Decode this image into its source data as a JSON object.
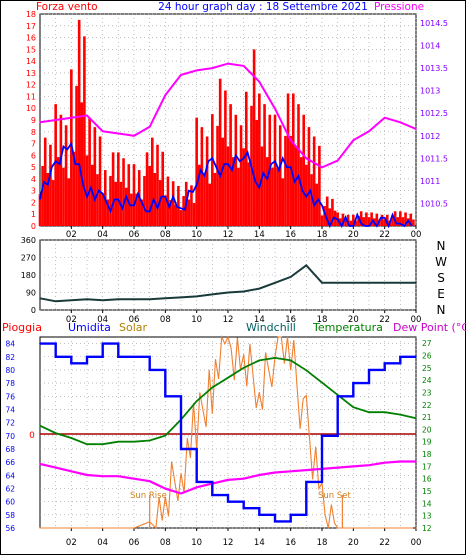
{
  "header": {
    "left_label": "Forza vento",
    "title": "24 hour graph day : 18 Settembre 2021",
    "right_label": "Pressione"
  },
  "panel2": {
    "direction_labels": [
      "N",
      "W",
      "S",
      "E",
      "N"
    ]
  },
  "panel3": {
    "legend": [
      "Pioggia",
      "Umidita",
      "Solar",
      "Windchill",
      "Temperatura",
      "Dew Point (°C)"
    ],
    "zero_label": "0",
    "sun_rise_label": "Sun Rise",
    "sun_set_label": "Sun Set"
  },
  "colors": {
    "wind": "#ff0000",
    "gust": "#ff0000",
    "speed": "#0000ff",
    "pressure": "#ff00ff",
    "direction": "#1a3a3a",
    "humidity": "#0000ff",
    "temperature": "#008000",
    "dewpoint": "#ff00ff",
    "solar": "#f08030",
    "rain": "#aa0000",
    "label_red": "#ff0000",
    "label_blue": "#0000ff",
    "label_magenta": "#cc00cc",
    "label_gold": "#b08000",
    "label_teal": "#006060",
    "label_green": "#008000"
  },
  "chart_data": [
    {
      "type": "line",
      "title": "24 hour graph day : 18 Settembre 2021",
      "x_ticks": [
        "02",
        "04",
        "06",
        "08",
        "10",
        "12",
        "14",
        "16",
        "18",
        "20",
        "22",
        "00"
      ],
      "x": [
        0,
        1,
        2,
        3,
        4,
        5,
        6,
        7,
        8,
        9,
        10,
        11,
        12,
        13,
        14,
        15,
        16,
        17,
        18,
        19,
        20,
        21,
        22,
        23,
        24
      ],
      "ylim_left": [
        0,
        18
      ],
      "ylim_right": [
        1010,
        1014.7
      ],
      "left_ticks": [
        "0",
        "1",
        "2",
        "3",
        "4",
        "5",
        "6",
        "7",
        "8",
        "9",
        "10",
        "11",
        "12",
        "13",
        "14",
        "15",
        "16",
        "17",
        "18"
      ],
      "right_ticks": [
        "1010.5",
        "1011",
        "1011.5",
        "1012",
        "1012.5",
        "1013",
        "1013.5",
        "1014",
        "1014.5"
      ],
      "series": [
        {
          "name": "Forza vento",
          "axis": "left",
          "values": [
            6,
            9,
            14,
            8,
            5,
            5,
            5,
            6,
            4,
            3,
            8,
            10,
            9,
            12,
            9,
            9,
            9,
            8,
            2,
            1,
            1,
            1,
            1,
            1,
            1
          ]
        },
        {
          "name": "Pressione",
          "axis": "right",
          "values": [
            1012.3,
            1012.35,
            1012.4,
            1012.45,
            1012.1,
            1012.05,
            1012.0,
            1012.2,
            1012.9,
            1013.35,
            1013.45,
            1013.5,
            1013.6,
            1013.55,
            1013.2,
            1012.6,
            1011.9,
            1011.5,
            1011.3,
            1011.45,
            1011.9,
            1012.1,
            1012.4,
            1012.3,
            1012.15
          ]
        },
        {
          "values": [
            3,
            5,
            7,
            3,
            2,
            2,
            2,
            2,
            2,
            1.5,
            4,
            5,
            5,
            6,
            4,
            5,
            5,
            3,
            1,
            0.3,
            0.2,
            0.2,
            0.2,
            0.2,
            0.2
          ]
        }
      ]
    },
    {
      "type": "line",
      "x_ticks": [
        "02",
        "04",
        "06",
        "08",
        "10",
        "12",
        "14",
        "16",
        "18",
        "20",
        "22",
        "00"
      ],
      "y_ticks": [
        "0",
        "90",
        "180",
        "270",
        "360"
      ],
      "ylim": [
        0,
        360
      ],
      "x": [
        0,
        1,
        2,
        3,
        4,
        5,
        6,
        7,
        8,
        9,
        10,
        11,
        12,
        13,
        14,
        15,
        16,
        17,
        18,
        19,
        20,
        21,
        22,
        23,
        24
      ],
      "series": [
        {
          "values": [
            60,
            45,
            50,
            55,
            50,
            55,
            55,
            55,
            60,
            65,
            70,
            80,
            90,
            95,
            110,
            140,
            170,
            230,
            140,
            140,
            140,
            140,
            140,
            140,
            140
          ]
        }
      ]
    },
    {
      "type": "line",
      "x_ticks": [
        "02",
        "04",
        "06",
        "08",
        "10",
        "12",
        "14",
        "16",
        "18",
        "20",
        "22",
        "00"
      ],
      "x": [
        0,
        1,
        2,
        3,
        4,
        5,
        6,
        7,
        8,
        9,
        10,
        11,
        12,
        13,
        14,
        15,
        16,
        17,
        18,
        19,
        20,
        21,
        22,
        23,
        24
      ],
      "ylim_left": [
        56,
        85
      ],
      "ylim_right": [
        12,
        27.5
      ],
      "left_ticks": [
        "56",
        "58",
        "60",
        "62",
        "64",
        "66",
        "68",
        "70",
        "72",
        "74",
        "76",
        "78",
        "80",
        "82",
        "84"
      ],
      "right_ticks": [
        "12",
        "13",
        "14",
        "15",
        "16",
        "17",
        "18",
        "19",
        "20",
        "21",
        "22",
        "23",
        "24",
        "25",
        "26",
        "27"
      ],
      "series": [
        {
          "name": "Umidita",
          "axis": "left",
          "values": [
            84,
            82,
            81,
            82,
            84,
            82,
            82,
            80,
            76,
            68,
            63,
            61,
            60,
            59,
            58,
            57,
            58,
            63,
            70,
            76,
            78,
            80,
            81,
            82,
            82
          ]
        },
        {
          "name": "Temperatura",
          "axis": "right",
          "values": [
            20.3,
            19.7,
            19.3,
            18.8,
            18.8,
            19.0,
            19.0,
            19.1,
            19.5,
            20.8,
            22.3,
            23.4,
            24.2,
            25.0,
            25.6,
            25.8,
            25.6,
            24.8,
            23.8,
            22.8,
            21.8,
            21.4,
            21.4,
            21.2,
            20.9
          ]
        },
        {
          "name": "Dew Point (°C)",
          "axis": "right",
          "values": [
            17.2,
            16.9,
            16.6,
            16.3,
            16.2,
            16.2,
            16.0,
            15.8,
            15.2,
            14.8,
            15.3,
            15.6,
            15.9,
            16.0,
            16.3,
            16.5,
            16.6,
            16.7,
            16.8,
            16.9,
            17.0,
            17.1,
            17.3,
            17.4,
            17.4
          ]
        },
        {
          "name": "Solar",
          "axis": "right",
          "values": [
            12,
            12,
            12,
            12,
            12,
            12,
            12,
            12.5,
            14,
            17,
            20,
            24,
            27,
            25,
            23,
            27,
            27,
            20,
            14,
            12,
            12,
            12,
            12,
            12,
            12
          ]
        },
        {
          "name": "Pioggia",
          "axis": "right",
          "values": [
            20,
            20,
            20,
            20,
            20,
            20,
            20,
            20,
            20,
            20,
            20,
            20,
            20,
            20,
            20,
            20,
            20,
            20,
            20,
            20,
            20,
            20,
            20,
            20,
            20
          ]
        }
      ]
    }
  ]
}
